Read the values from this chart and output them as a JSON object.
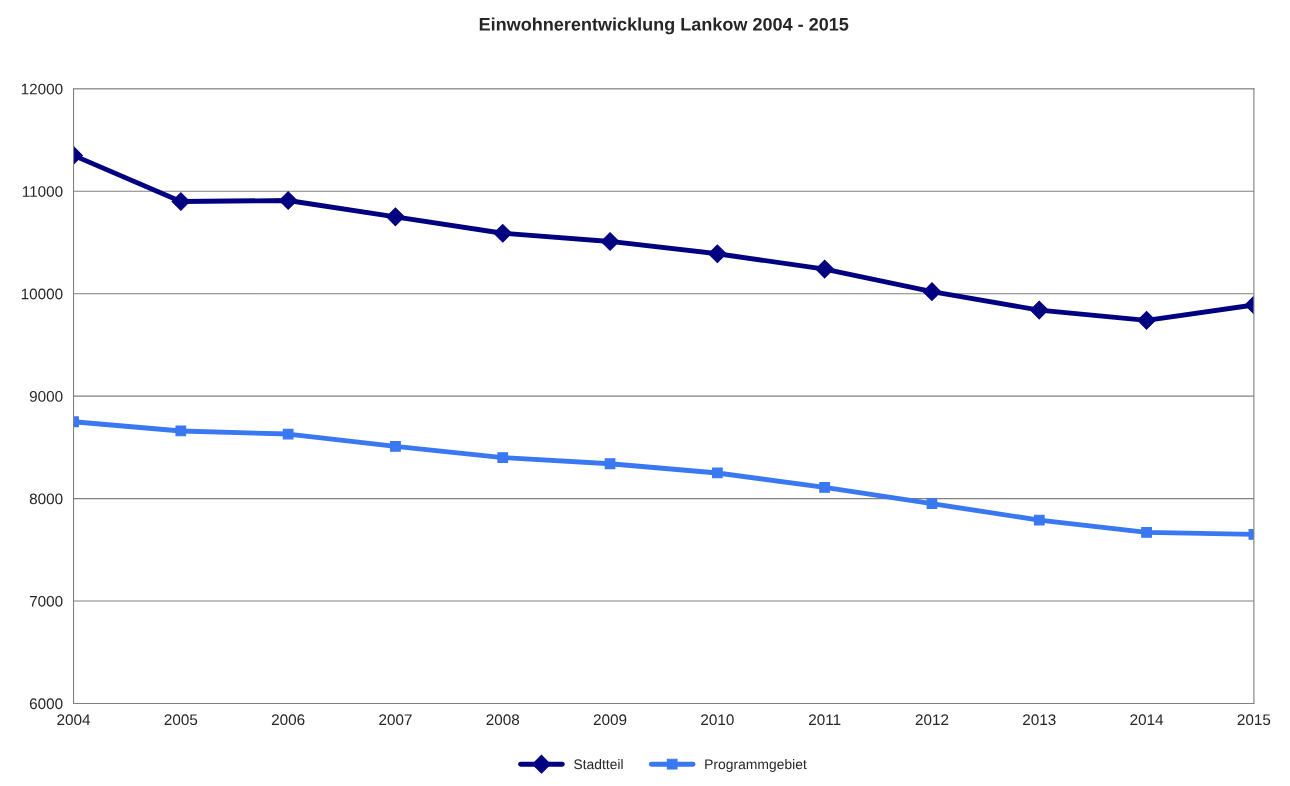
{
  "chart_data": {
    "type": "line",
    "title": "Einwohnerentwicklung Lankow 2004 - 2015",
    "x": [
      2004,
      2005,
      2006,
      2007,
      2008,
      2009,
      2010,
      2011,
      2012,
      2013,
      2014,
      2015
    ],
    "series": [
      {
        "name": "Stadtteil",
        "color": "#000080",
        "marker": "diamond",
        "values": [
          11350,
          10900,
          10910,
          10750,
          10590,
          10510,
          10390,
          10240,
          10020,
          9840,
          9740,
          9890
        ]
      },
      {
        "name": "Programmgebiet",
        "color": "#3a78f2",
        "marker": "square",
        "values": [
          8750,
          8660,
          8630,
          8510,
          8400,
          8340,
          8250,
          8110,
          7950,
          7790,
          7670,
          7650
        ]
      }
    ],
    "xlim": [
      2004,
      2015
    ],
    "xticks": [
      2004,
      2005,
      2006,
      2007,
      2008,
      2009,
      2010,
      2011,
      2012,
      2013,
      2014,
      2015
    ],
    "ylim": [
      6000,
      12000
    ],
    "yticks": [
      6000,
      7000,
      8000,
      9000,
      10000,
      11000,
      12000
    ],
    "grid": "y",
    "legend": "bottom",
    "line_style": "solid"
  }
}
